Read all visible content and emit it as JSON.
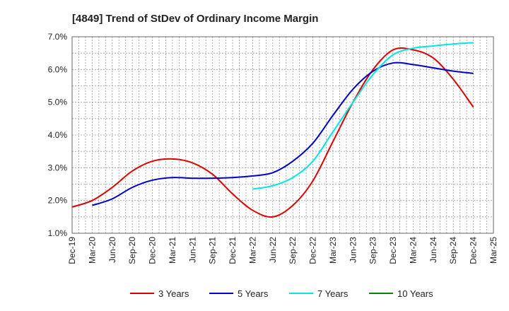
{
  "chart_data": {
    "type": "line",
    "title": "[4849]  Trend of StDev of Ordinary Income Margin",
    "xlabel": "",
    "ylabel": "",
    "categories": [
      "Dec-19",
      "Mar-20",
      "Jun-20",
      "Sep-20",
      "Dec-20",
      "Mar-21",
      "Jun-21",
      "Sep-21",
      "Dec-21",
      "Mar-22",
      "Jun-22",
      "Sep-22",
      "Dec-22",
      "Mar-23",
      "Jun-23",
      "Sep-23",
      "Dec-23",
      "Mar-24",
      "Jun-24",
      "Sep-24",
      "Dec-24",
      "Mar-25"
    ],
    "ylim": [
      1.0,
      7.0
    ],
    "y_ticks": [
      "1.0%",
      "2.0%",
      "3.0%",
      "4.0%",
      "5.0%",
      "6.0%",
      "7.0%"
    ],
    "grid": true,
    "legend_position": "bottom",
    "series": [
      {
        "name": "3 Years",
        "color": "#dd0000",
        "values": [
          1.8,
          2.0,
          2.4,
          2.9,
          3.2,
          3.27,
          3.15,
          2.8,
          2.2,
          1.7,
          1.5,
          1.85,
          2.6,
          3.8,
          5.0,
          6.0,
          6.6,
          6.6,
          6.35,
          5.7,
          4.85,
          null
        ]
      },
      {
        "name": "5 Years",
        "color": "#0000cc",
        "values": [
          null,
          1.85,
          2.05,
          2.4,
          2.62,
          2.7,
          2.68,
          2.68,
          2.7,
          2.75,
          2.85,
          3.2,
          3.75,
          4.6,
          5.4,
          5.95,
          6.2,
          6.15,
          6.05,
          5.95,
          5.88,
          null
        ]
      },
      {
        "name": "7 Years",
        "color": "#00e5e5",
        "values": [
          null,
          null,
          null,
          null,
          null,
          null,
          null,
          null,
          null,
          2.35,
          2.45,
          2.7,
          3.2,
          4.1,
          5.0,
          5.85,
          6.45,
          6.65,
          6.72,
          6.78,
          6.82,
          null
        ]
      },
      {
        "name": "10 Years",
        "color": "#008800",
        "values": [
          null,
          null,
          null,
          null,
          null,
          null,
          null,
          null,
          null,
          null,
          null,
          null,
          null,
          null,
          null,
          null,
          null,
          null,
          null,
          null,
          null,
          null
        ]
      }
    ]
  }
}
